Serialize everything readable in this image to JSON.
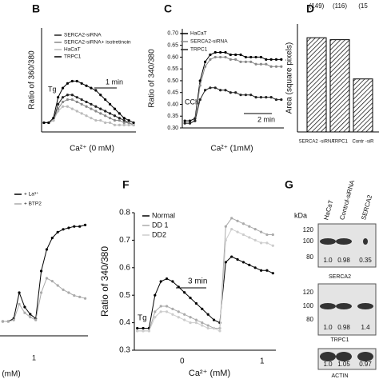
{
  "chart_data": [
    {
      "type": "line",
      "panel": "B",
      "ylabel": "Ratio of 360/380",
      "xlabel": "Ca²⁺ (0 mM)",
      "annotations": [
        "Tg",
        "1 min"
      ],
      "ylim": [
        0.3,
        0.75
      ],
      "series": [
        {
          "name": "SERCA2-siRNA",
          "color": "#222222",
          "values": [
            0.34,
            0.34,
            0.35,
            0.42,
            0.45,
            0.46,
            0.46,
            0.45,
            0.44,
            0.43,
            0.42,
            0.41,
            0.4,
            0.39,
            0.38,
            0.37,
            0.36,
            0.35,
            0.34,
            0.33
          ]
        },
        {
          "name": "SERCA2-siRNA+ isotretinoin",
          "color": "#888888",
          "values": [
            0.34,
            0.34,
            0.35,
            0.4,
            0.43,
            0.44,
            0.44,
            0.43,
            0.42,
            0.41,
            0.4,
            0.39,
            0.38,
            0.37,
            0.36,
            0.35,
            0.35,
            0.34,
            0.34,
            0.33
          ]
        },
        {
          "name": "HaCaT",
          "color": "#bbbbbb",
          "values": [
            0.34,
            0.34,
            0.35,
            0.39,
            0.41,
            0.41,
            0.4,
            0.39,
            0.38,
            0.37,
            0.36,
            0.35,
            0.35,
            0.34,
            0.34,
            0.33,
            0.33,
            0.33,
            0.33,
            0.33
          ]
        },
        {
          "name": "TRPC1",
          "color": "#000000",
          "values": [
            0.34,
            0.34,
            0.36,
            0.45,
            0.49,
            0.51,
            0.52,
            0.52,
            0.51,
            0.5,
            0.49,
            0.48,
            0.46,
            0.44,
            0.42,
            0.4,
            0.38,
            0.36,
            0.35,
            0.34
          ]
        }
      ]
    },
    {
      "type": "line",
      "panel": "C",
      "ylabel": "Ratio of 340/380",
      "xlabel": "Ca²⁺ (1mM)",
      "annotations": [
        "CCh",
        "2 min"
      ],
      "ylim": [
        0.3,
        0.72
      ],
      "yticks": [
        {
          "value": 0.3,
          "label": "0.30"
        },
        {
          "value": 0.35,
          "label": "0.35"
        },
        {
          "value": 0.4,
          "label": "0.40"
        },
        {
          "value": 0.45,
          "label": "0.45"
        },
        {
          "value": 0.5,
          "label": "0.50"
        },
        {
          "value": 0.55,
          "label": "0.55"
        },
        {
          "value": 0.6,
          "label": "0.60"
        },
        {
          "value": 0.65,
          "label": "0.65"
        },
        {
          "value": 0.7,
          "label": "0.70"
        }
      ],
      "series": [
        {
          "name": "HaCaT",
          "color": "#000000",
          "values": [
            0.33,
            0.33,
            0.34,
            0.5,
            0.58,
            0.61,
            0.62,
            0.62,
            0.62,
            0.61,
            0.61,
            0.61,
            0.6,
            0.6,
            0.6,
            0.6,
            0.59,
            0.59,
            0.59,
            0.59
          ]
        },
        {
          "name": "SERCA2-siRNA",
          "color": "#888888",
          "values": [
            0.32,
            0.32,
            0.33,
            0.48,
            0.56,
            0.59,
            0.6,
            0.6,
            0.6,
            0.59,
            0.59,
            0.58,
            0.58,
            0.58,
            0.57,
            0.57,
            0.57,
            0.56,
            0.56,
            0.56
          ]
        },
        {
          "name": "TRPC1",
          "color": "#222222",
          "values": [
            0.32,
            0.32,
            0.33,
            0.42,
            0.46,
            0.47,
            0.47,
            0.46,
            0.46,
            0.45,
            0.45,
            0.44,
            0.44,
            0.44,
            0.43,
            0.43,
            0.43,
            0.43,
            0.42,
            0.42
          ]
        }
      ]
    },
    {
      "type": "bar",
      "panel": "D",
      "ylabel": "Area (square pixels)",
      "annotations": [
        "(149)",
        "(116)",
        "(15"
      ],
      "ylim": [
        0,
        55
      ],
      "categories": [
        "SERCA2 -siRNA",
        "TRPC1",
        "Contr -siR"
      ],
      "values": [
        48,
        47,
        27
      ]
    },
    {
      "type": "line",
      "xlabel": "(mM)",
      "annotations": [
        "1"
      ],
      "ylim": [
        0,
        1
      ],
      "series": [
        {
          "name": "+ La³⁺",
          "color": "#000000",
          "values": [
            0.1,
            0.1,
            0.12,
            0.3,
            0.2,
            0.15,
            0.12,
            0.45,
            0.6,
            0.68,
            0.72,
            0.74,
            0.75,
            0.76,
            0.76,
            0.77
          ]
        },
        {
          "name": "+ BTP2",
          "color": "#aaaaaa",
          "values": [
            0.1,
            0.1,
            0.11,
            0.22,
            0.16,
            0.13,
            0.11,
            0.3,
            0.4,
            0.38,
            0.35,
            0.32,
            0.3,
            0.28,
            0.27,
            0.26
          ]
        }
      ]
    },
    {
      "type": "line",
      "panel": "F",
      "ylabel": "Ratio of 340/380",
      "xlabel": "Ca²⁺ (mM)",
      "annotations": [
        "Tg",
        "3 min",
        "0",
        "1"
      ],
      "ylim": [
        0.3,
        0.8
      ],
      "yticks": [
        0.3,
        0.4,
        0.5,
        0.6,
        0.7,
        0.8
      ],
      "series": [
        {
          "name": "Normal",
          "color": "#000000",
          "values": [
            0.38,
            0.38,
            0.38,
            0.5,
            0.55,
            0.56,
            0.55,
            0.53,
            0.51,
            0.49,
            0.47,
            0.45,
            0.43,
            0.41,
            0.4,
            0.62,
            0.64,
            0.63,
            0.62,
            0.61,
            0.6,
            0.59,
            0.59,
            0.58
          ]
        },
        {
          "name": "DD 1",
          "color": "#aaaaaa",
          "values": [
            0.37,
            0.37,
            0.37,
            0.44,
            0.46,
            0.46,
            0.45,
            0.44,
            0.43,
            0.42,
            0.41,
            0.4,
            0.39,
            0.38,
            0.38,
            0.75,
            0.78,
            0.77,
            0.76,
            0.75,
            0.74,
            0.73,
            0.72,
            0.72
          ]
        },
        {
          "name": "DD2",
          "color": "#cccccc",
          "values": [
            0.37,
            0.37,
            0.37,
            0.42,
            0.44,
            0.44,
            0.43,
            0.42,
            0.41,
            0.4,
            0.4,
            0.39,
            0.38,
            0.38,
            0.37,
            0.7,
            0.74,
            0.73,
            0.72,
            0.71,
            0.7,
            0.69,
            0.69,
            0.68
          ]
        }
      ]
    }
  ],
  "blot": {
    "panel": "G",
    "unit": "kDa",
    "lanes": [
      "HaCaT",
      "Control-siRNA",
      "SERCA2"
    ],
    "blots": [
      {
        "markers": [
          120,
          100,
          80
        ],
        "ratios": [
          "1.0",
          "0.98",
          "0.35"
        ],
        "label": "SERCA2"
      },
      {
        "markers": [
          120,
          100,
          80
        ],
        "ratios": [
          "1.0",
          "0.98",
          "1.4"
        ],
        "label": "TRPC1"
      },
      {
        "ratios": [
          "1.0",
          "1.05",
          "0.97"
        ],
        "label": "ACTIN"
      }
    ]
  }
}
